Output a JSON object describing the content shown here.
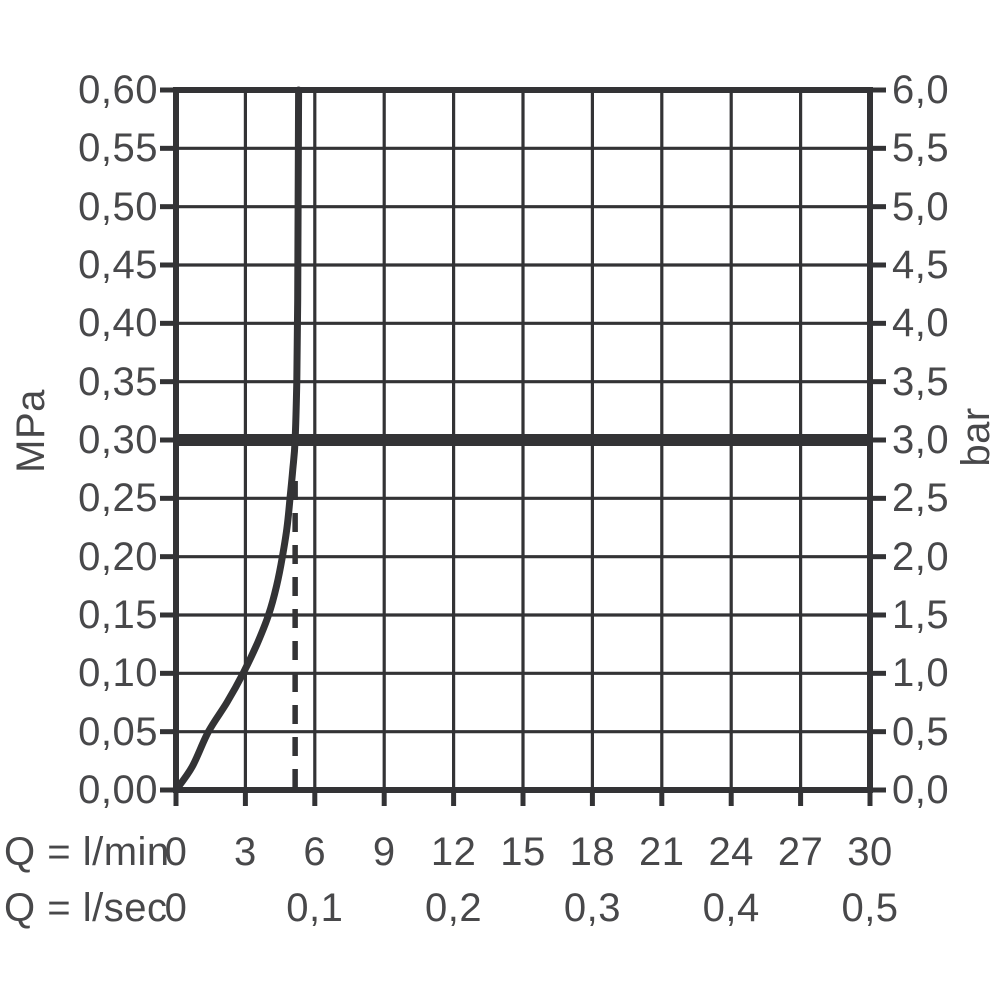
{
  "figure": {
    "left_axis_title": "MPa",
    "right_axis_title": "bar",
    "flow_row1_label": "Q = l/min",
    "flow_row2_label": "Q = l/sec"
  },
  "colors": {
    "line": "#333335",
    "text": "#48484a",
    "background": "#ffffff"
  },
  "chart_data": {
    "type": "line",
    "title": "",
    "x_axis": {
      "primary": {
        "label": "Q = l/min",
        "min": 0,
        "max": 30,
        "tick_step": 3,
        "tick_labels": [
          "0",
          "3",
          "6",
          "9",
          "12",
          "15",
          "18",
          "21",
          "24",
          "27",
          "30"
        ]
      },
      "secondary": {
        "label": "Q = l/sec",
        "tick_labels": [
          "0",
          "0,1",
          "0,2",
          "0,3",
          "0,4",
          "0,5"
        ],
        "tick_values_lmin": [
          0,
          6,
          12,
          18,
          24,
          30
        ]
      }
    },
    "y_axis": {
      "left": {
        "label": "MPa",
        "min": 0,
        "max": 0.6,
        "tick_step": 0.05,
        "tick_labels": [
          "0,60",
          "0,55",
          "0,50",
          "0,45",
          "0,40",
          "0,35",
          "0,30",
          "0,25",
          "0,20",
          "0,15",
          "0,10",
          "0,05",
          "0,00"
        ]
      },
      "right": {
        "label": "bar",
        "min": 0,
        "max": 6,
        "tick_step": 0.5,
        "tick_labels": [
          "6,0",
          "5,5",
          "5,0",
          "4,5",
          "4,0",
          "3,5",
          "3,0",
          "2,5",
          "2,0",
          "1,5",
          "1,0",
          "0,5",
          "0,0"
        ]
      }
    },
    "grid": {
      "vertical_step_lmin": 3,
      "horizontal_step_mpa": 0.05
    },
    "series": [
      {
        "name": "flow-pressure-curve",
        "points_q_lmin_mpa": [
          [
            0,
            0
          ],
          [
            0.7,
            0.02
          ],
          [
            1.4,
            0.05
          ],
          [
            2.2,
            0.075
          ],
          [
            2.9,
            0.1
          ],
          [
            3.5,
            0.125
          ],
          [
            4.0,
            0.15
          ],
          [
            4.35,
            0.175
          ],
          [
            4.6,
            0.2
          ],
          [
            4.8,
            0.225
          ],
          [
            4.93,
            0.25
          ],
          [
            5.05,
            0.275
          ],
          [
            5.15,
            0.3
          ],
          [
            5.22,
            0.35
          ],
          [
            5.26,
            0.42
          ],
          [
            5.28,
            0.5
          ],
          [
            5.3,
            0.6
          ]
        ]
      }
    ],
    "annotations": {
      "bold_horizontal_line_mpa": 0.3,
      "dashed_vertical_line_q_lmin": 5.15,
      "dashed_vertical_line_top_mpa": 0.275
    }
  }
}
